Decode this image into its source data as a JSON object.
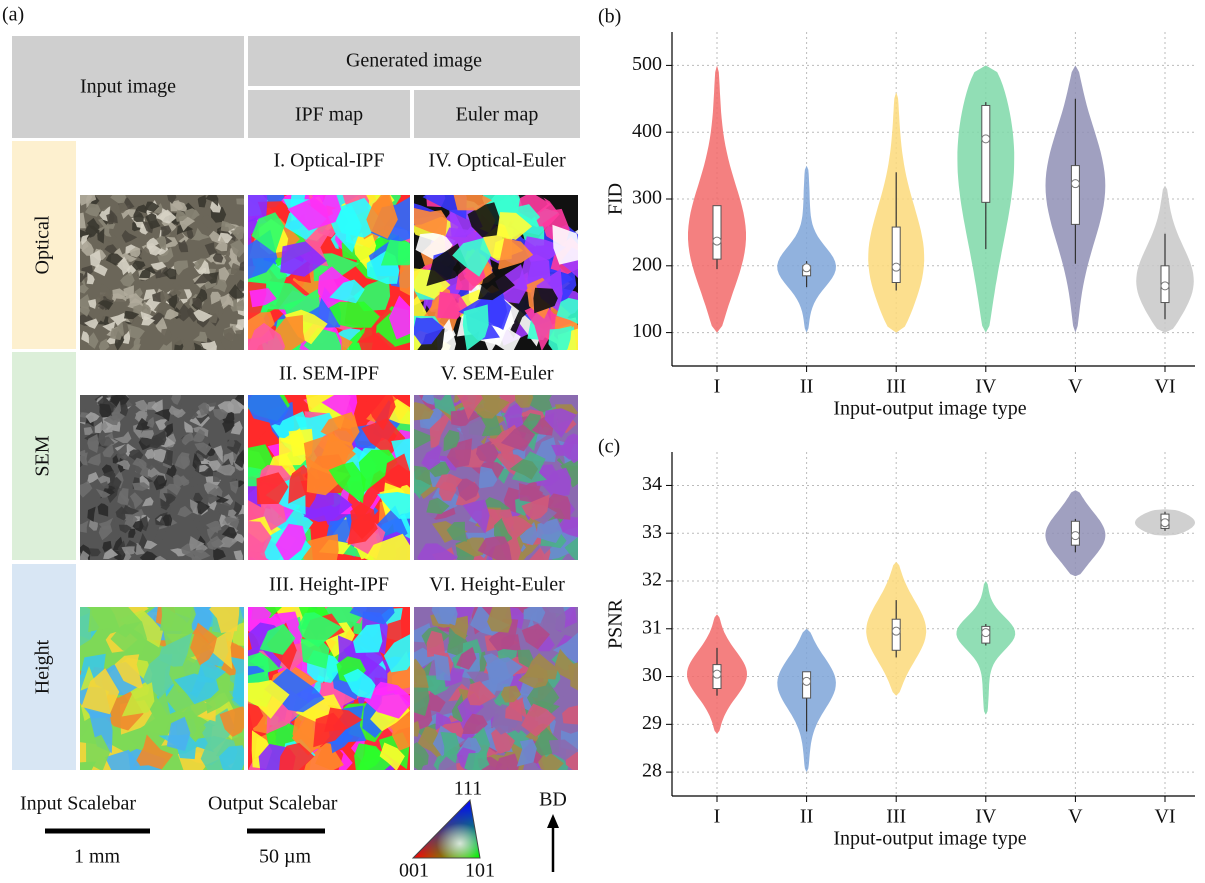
{
  "figure_a": {
    "label": "(a)",
    "header": {
      "input": "Input image",
      "generated": "Generated image",
      "ipf": "IPF map",
      "euler": "Euler map"
    },
    "rows": [
      {
        "label": "Optical",
        "ipf_caption": "I. Optical-IPF",
        "euler_caption": "IV. Optical-Euler"
      },
      {
        "label": "SEM",
        "ipf_caption": "II. SEM-IPF",
        "euler_caption": "V. SEM-Euler"
      },
      {
        "label": "Height",
        "ipf_caption": "III. Height-IPF",
        "euler_caption": "VI. Height-Euler"
      }
    ],
    "scalebars": {
      "input_title": "Input Scalebar",
      "input_length": "1 mm",
      "output_title": "Output Scalebar",
      "output_length": "50 µm"
    },
    "legend": {
      "top": "111",
      "left": "001",
      "right": "101",
      "direction": "BD"
    }
  },
  "chart_data": [
    {
      "type": "violin",
      "label": "(b)",
      "y_label": "FID",
      "x_label": "Input-output image type",
      "categories": [
        "I",
        "II",
        "III",
        "IV",
        "V",
        "VI"
      ],
      "colors": [
        "#f26a6a",
        "#7ea5d8",
        "#fcd97a",
        "#7ed8a8",
        "#8f8fb5",
        "#c8c8c8"
      ],
      "violin_min": [
        100,
        100,
        100,
        100,
        100,
        100
      ],
      "violin_max": [
        500,
        350,
        460,
        500,
        500,
        320
      ],
      "whisker_low": [
        195,
        168,
        163,
        225,
        203,
        120
      ],
      "q1": [
        210,
        185,
        175,
        295,
        262,
        145
      ],
      "median": [
        237,
        197,
        198,
        390,
        323,
        170
      ],
      "q3": [
        290,
        200,
        258,
        440,
        350,
        200
      ],
      "whisker_high": [
        290,
        207,
        340,
        445,
        450,
        248
      ],
      "ylim": [
        50,
        550
      ],
      "yticks": [
        100,
        200,
        300,
        400,
        500
      ],
      "grid": true
    },
    {
      "type": "violin",
      "label": "(c)",
      "y_label": "PSNR",
      "x_label": "Input-output image type",
      "categories": [
        "I",
        "II",
        "III",
        "IV",
        "V",
        "VI"
      ],
      "colors": [
        "#f26a6a",
        "#7ea5d8",
        "#fcd97a",
        "#7ed8a8",
        "#8f8fb5",
        "#c8c8c8"
      ],
      "violin_min": [
        28.8,
        28.0,
        29.6,
        29.2,
        32.1,
        32.95
      ],
      "violin_max": [
        31.3,
        31.0,
        32.4,
        32.0,
        33.9,
        33.5
      ],
      "whisker_low": [
        29.6,
        28.85,
        30.4,
        30.65,
        32.6,
        33.05
      ],
      "q1": [
        29.75,
        29.55,
        30.55,
        30.7,
        32.75,
        33.1
      ],
      "median": [
        30.05,
        29.9,
        30.95,
        30.92,
        32.95,
        33.22
      ],
      "q3": [
        30.25,
        30.1,
        31.2,
        31.05,
        33.25,
        33.4
      ],
      "whisker_high": [
        30.6,
        30.1,
        31.6,
        31.1,
        33.3,
        33.45
      ],
      "ylim": [
        27.5,
        34.7
      ],
      "yticks": [
        28,
        29,
        30,
        31,
        32,
        33,
        34
      ],
      "grid": true
    }
  ]
}
